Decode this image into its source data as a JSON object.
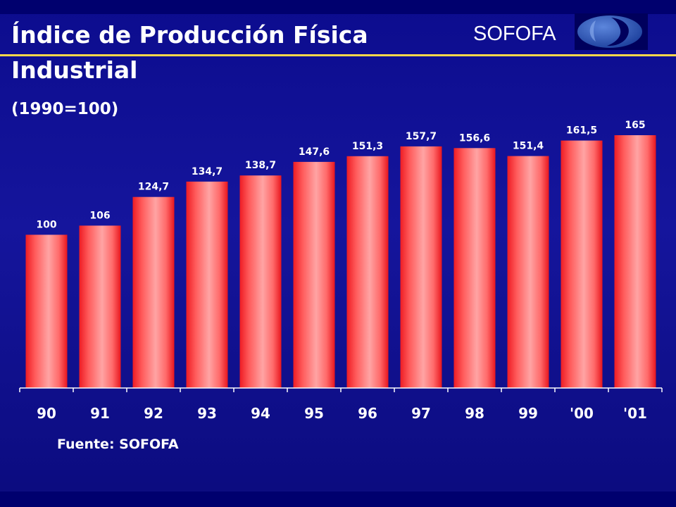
{
  "title": {
    "line1": "Índice de Producción Física",
    "line2": "Industrial"
  },
  "subtitle": "(1990=100)",
  "brand": "SOFOFA",
  "source": "Fuente: SOFOFA",
  "colors": {
    "background": "#12129a",
    "bar_light": "#ff9e9e",
    "bar_dark": "#ee1c24",
    "title_rule": "#ffd84a",
    "logo_blue": "#2a56b8"
  },
  "chart_data": {
    "type": "bar",
    "categories": [
      "90",
      "91",
      "92",
      "93",
      "94",
      "95",
      "96",
      "97",
      "98",
      "99",
      "'00",
      "'01"
    ],
    "values": [
      100,
      106,
      124.7,
      134.7,
      138.7,
      147.6,
      151.3,
      157.7,
      156.6,
      151.4,
      161.5,
      165
    ],
    "value_labels": [
      "100",
      "106",
      "124,7",
      "134,7",
      "138,7",
      "147,6",
      "151,3",
      "157,7",
      "156,6",
      "151,4",
      "161,5",
      "165"
    ],
    "title": "Índice de Producción Física Industrial",
    "subtitle": "(1990=100)",
    "xlabel": "",
    "ylabel": "",
    "ylim": [
      0,
      165
    ],
    "grid": false,
    "legend": "none"
  }
}
